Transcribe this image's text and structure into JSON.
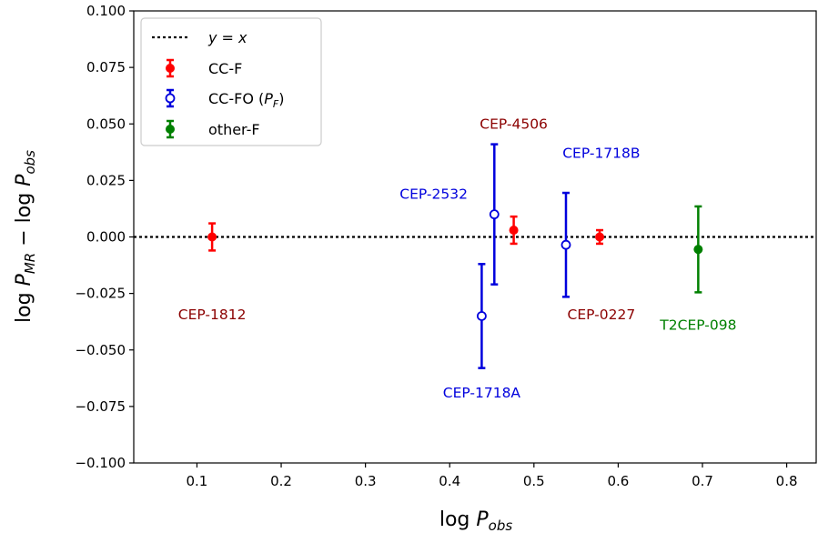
{
  "chart_data": {
    "type": "scatter",
    "xlabel": "log P_obs",
    "ylabel": "log P_MR − log P_obs",
    "xlim": [
      0.025,
      0.835
    ],
    "ylim": [
      -0.1,
      0.1
    ],
    "xticks": [
      0.1,
      0.2,
      0.3,
      0.4,
      0.5,
      0.6,
      0.7,
      0.8
    ],
    "yticks": [
      -0.1,
      -0.075,
      -0.05,
      -0.025,
      0.0,
      0.025,
      0.05,
      0.075,
      0.1
    ],
    "xtick_labels": [
      "0.1",
      "0.2",
      "0.3",
      "0.4",
      "0.5",
      "0.6",
      "0.7",
      "0.8"
    ],
    "ytick_labels": [
      "−0.100",
      "−0.075",
      "−0.050",
      "−0.025",
      "0.000",
      "0.025",
      "0.050",
      "0.075",
      "0.100"
    ],
    "grid": false,
    "legend_position": "top-left",
    "reference_line": {
      "label": "y = x",
      "y": 0.0,
      "style": "dotted",
      "color": "#000000"
    },
    "series": [
      {
        "name": "CC-F",
        "color": "#ff0000",
        "marker": "filled-circle",
        "points": [
          {
            "id": "CEP-1812",
            "x": 0.118,
            "y": 0.0,
            "err": 0.006
          },
          {
            "id": "CEP-4506",
            "x": 0.476,
            "y": 0.003,
            "err": 0.006
          },
          {
            "id": "CEP-0227",
            "x": 0.578,
            "y": 0.0,
            "err": 0.003
          }
        ]
      },
      {
        "name": "CC-FO (P_F)",
        "color": "#0000dd",
        "marker": "open-circle",
        "points": [
          {
            "id": "CEP-1718A",
            "x": 0.438,
            "y": -0.035,
            "err": 0.023
          },
          {
            "id": "CEP-2532",
            "x": 0.453,
            "y": 0.01,
            "err": 0.031
          },
          {
            "id": "CEP-1718B",
            "x": 0.538,
            "y": -0.0035,
            "err": 0.023
          }
        ]
      },
      {
        "name": "other-F",
        "color": "#008000",
        "marker": "filled-circle",
        "points": [
          {
            "id": "T2CEP-098",
            "x": 0.695,
            "y": -0.0055,
            "err": 0.019
          }
        ]
      }
    ],
    "annotations": [
      {
        "text": "CEP-1812",
        "x": 0.118,
        "y": -0.0345,
        "color": "#8b0000"
      },
      {
        "text": "CEP-4506",
        "x": 0.476,
        "y": 0.05,
        "color": "#8b0000"
      },
      {
        "text": "CEP-0227",
        "x": 0.58,
        "y": -0.0345,
        "color": "#8b0000"
      },
      {
        "text": "CEP-1718B",
        "x": 0.58,
        "y": 0.037,
        "color": "#0000dd"
      },
      {
        "text": "CEP-2532",
        "x": 0.381,
        "y": 0.019,
        "color": "#0000dd"
      },
      {
        "text": "CEP-1718A",
        "x": 0.438,
        "y": -0.069,
        "color": "#0000dd"
      },
      {
        "text": "T2CEP-098",
        "x": 0.695,
        "y": -0.039,
        "color": "#008000"
      }
    ]
  }
}
